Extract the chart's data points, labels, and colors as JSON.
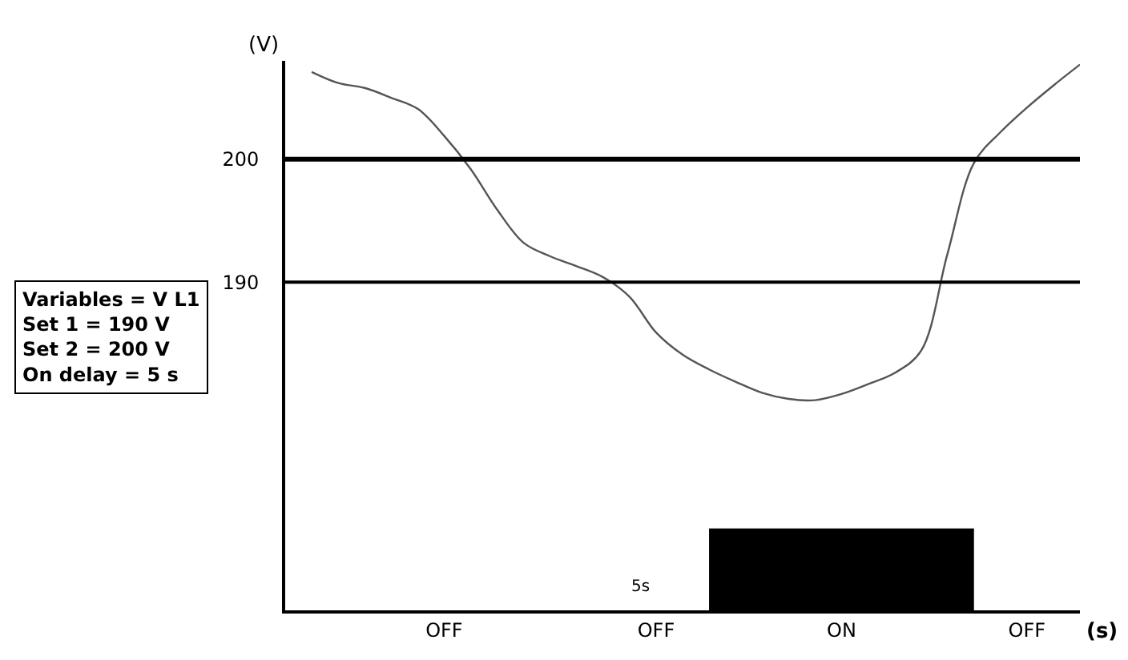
{
  "chart_data": {
    "type": "line",
    "xlabel": "(s)",
    "ylabel": "(V)",
    "categories": [
      null,
      null,
      null,
      null,
      null,
      null,
      "OFF",
      null,
      null,
      null,
      null,
      null,
      null,
      null,
      "OFF",
      null,
      null,
      null,
      null,
      null,
      null,
      "ON",
      null,
      null,
      null,
      null,
      null,
      null,
      "OFF",
      null,
      null
    ],
    "series": [
      {
        "type": "area",
        "color": "#000000",
        "values": [
          null,
          null,
          null,
          null,
          null,
          null,
          null,
          null,
          null,
          null,
          null,
          null,
          null,
          null,
          null,
          null,
          169.9,
          169.9,
          169.9,
          169.9,
          169.9,
          169.9,
          169.9,
          169.9,
          169.9,
          169.9,
          169.9,
          null,
          null,
          null,
          null
        ]
      },
      {
        "color": "#555555",
        "values": [
          null,
          207.1,
          206.2,
          205.8,
          205.0,
          204.1,
          201.9,
          199.2,
          195.9,
          193.2,
          192.1,
          191.3,
          190.4,
          188.8,
          185.9,
          184.1,
          182.9,
          181.9,
          181.0,
          180.5,
          180.4,
          180.9,
          181.7,
          182.6,
          184.4,
          192.3,
          199.7,
          202.2,
          204.2,
          206.0,
          207.7
        ]
      }
    ],
    "ylim": [
      163.3,
      208
    ],
    "yticks": [
      190,
      200
    ],
    "ref_lines": [
      {
        "axis": "y",
        "value": 200,
        "color": "#000000"
      },
      {
        "axis": "y",
        "value": 190,
        "color": "#000000"
      }
    ],
    "annotations": [
      "Variables = V L1\nSet 1 = 190 V\nSet 2 = 200 V\nOn delay = 5 s",
      "5s"
    ],
    "marker": "none",
    "line_style": "solid"
  }
}
